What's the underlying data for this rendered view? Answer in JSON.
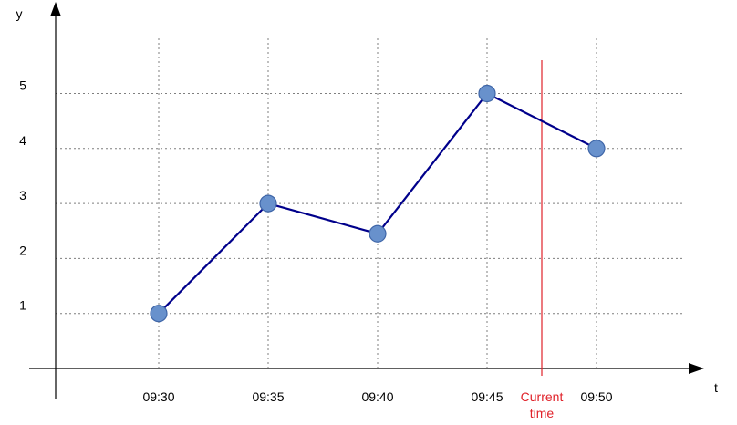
{
  "chart_data": {
    "type": "line",
    "xlabel": "t",
    "ylabel": "y",
    "categories": [
      "09:30",
      "09:35",
      "09:40",
      "09:45",
      "09:50"
    ],
    "y_ticks": [
      "1",
      "2",
      "3",
      "4",
      "5"
    ],
    "ylim": [
      0,
      5.5
    ],
    "grid": true,
    "series": [
      {
        "x": [
          "09:30",
          "09:35",
          "09:40",
          "09:45",
          "09:50"
        ],
        "values": [
          1.0,
          3.0,
          2.45,
          5.0,
          4.0
        ]
      }
    ],
    "annotations": [
      {
        "type": "vertical-line",
        "x": "09:47:30",
        "label_lines": [
          "Current",
          "time"
        ]
      }
    ],
    "colors": {
      "line": "#00008b",
      "marker_fill": "#6891cc",
      "marker_stroke": "#3f66a8",
      "current_time": "#e0222a"
    }
  }
}
